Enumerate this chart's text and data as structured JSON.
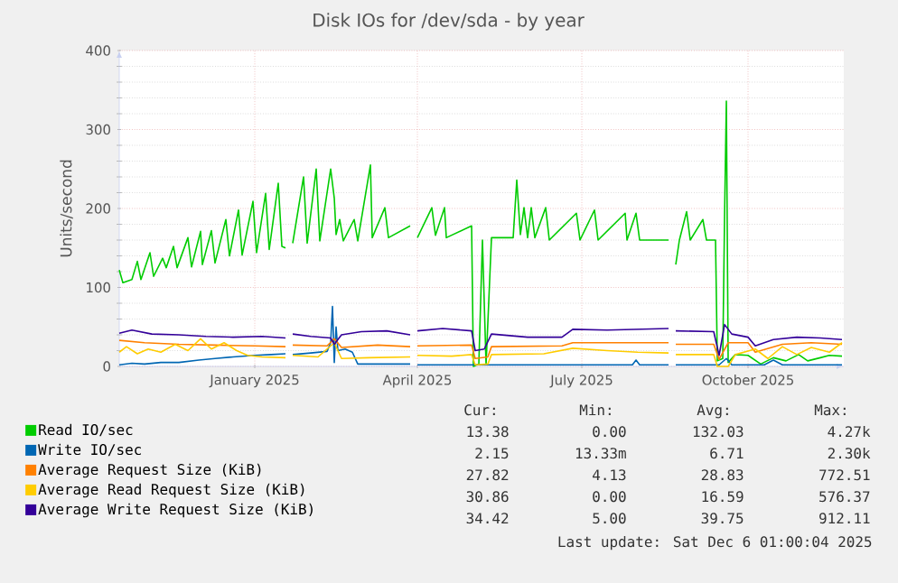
{
  "chart_data": {
    "type": "line",
    "title": "Disk IOs for /dev/sda - by year",
    "ylabel": "Units/second",
    "xlim": [
      "2024-10-18",
      "2025-11-23"
    ],
    "xticks": [
      {
        "value": "2025-01-01",
        "label": "January 2025"
      },
      {
        "value": "2025-04-01",
        "label": "April 2025"
      },
      {
        "value": "2025-07-01",
        "label": "July 2025"
      },
      {
        "value": "2025-10-01",
        "label": "October 2025"
      }
    ],
    "ylim": [
      0,
      400
    ],
    "yticks": [
      0,
      100,
      200,
      300,
      400
    ],
    "grid": true,
    "legend": "bottom",
    "series": [
      {
        "name": "Read IO/sec",
        "color": "#00cc00",
        "x": [
          "2024-10-18",
          "2024-10-20",
          "2024-10-25",
          "2024-10-28",
          "2024-10-30",
          "2024-11-04",
          "2024-11-06",
          "2024-11-11",
          "2024-11-13",
          "2024-11-17",
          "2024-11-19",
          "2024-11-25",
          "2024-11-27",
          "2024-12-02",
          "2024-12-03",
          "2024-12-08",
          "2024-12-10",
          "2024-12-16",
          "2024-12-18",
          "2024-12-23",
          "2024-12-25",
          "2024-12-31",
          "2025-01-02",
          "2025-01-07",
          "2025-01-09",
          "2025-01-14",
          "2025-01-16",
          "2025-01-18",
          "2025-01-20",
          "2025-01-22",
          "2025-01-28",
          "2025-01-30",
          "2025-02-04",
          "2025-02-06",
          "2025-02-12",
          "2025-02-14",
          "2025-02-15",
          "2025-02-17",
          "2025-02-19",
          "2025-02-25",
          "2025-02-27",
          "2025-03-06",
          "2025-03-07",
          "2025-03-14",
          "2025-03-16",
          "2025-03-28",
          "2025-03-30",
          "2025-04-01",
          "2025-04-09",
          "2025-04-11",
          "2025-04-16",
          "2025-04-17",
          "2025-05-01",
          "2025-05-02",
          "2025-05-05",
          "2025-05-07",
          "2025-05-09",
          "2025-05-12",
          "2025-05-24",
          "2025-05-26",
          "2025-05-28",
          "2025-05-30",
          "2025-06-01",
          "2025-06-03",
          "2025-06-05",
          "2025-06-11",
          "2025-06-13",
          "2025-06-28",
          "2025-06-30",
          "2025-07-08",
          "2025-07-10",
          "2025-07-25",
          "2025-07-26",
          "2025-07-31",
          "2025-08-02",
          "2025-08-18",
          "2025-08-20",
          "2025-08-22",
          "2025-08-24",
          "2025-08-28",
          "2025-08-30",
          "2025-09-06",
          "2025-09-08",
          "2025-09-13",
          "2025-09-14",
          "2025-09-17",
          "2025-09-18",
          "2025-09-19",
          "2025-09-20",
          "2025-09-24",
          "2025-10-01",
          "2025-10-08",
          "2025-10-15",
          "2025-10-22",
          "2025-10-29",
          "2025-11-03",
          "2025-11-10",
          "2025-11-15",
          "2025-11-22"
        ],
        "values": [
          122,
          106,
          110,
          133,
          110,
          144,
          114,
          137,
          125,
          152,
          125,
          163,
          126,
          171,
          129,
          172,
          131,
          186,
          140,
          198,
          141,
          209,
          144,
          219,
          148,
          232,
          152,
          150,
          null,
          156,
          240,
          156,
          250,
          159,
          250,
          213,
          167,
          186,
          159,
          186,
          159,
          255,
          163,
          201,
          163,
          178,
          null,
          163,
          201,
          166,
          201,
          163,
          178,
          0,
          3,
          160,
          2,
          163,
          163,
          236,
          167,
          201,
          163,
          201,
          163,
          201,
          160,
          194,
          160,
          198,
          160,
          194,
          160,
          194,
          160,
          160,
          null,
          129,
          160,
          196,
          160,
          186,
          160,
          160,
          7,
          10,
          190,
          336,
          5,
          15,
          14,
          3,
          11,
          7,
          15,
          7,
          11,
          14,
          13
        ]
      },
      {
        "name": "Write IO/sec",
        "color": "#0066b3",
        "x": [
          "2024-10-18",
          "2024-10-25",
          "2024-11-01",
          "2024-11-10",
          "2024-11-20",
          "2024-12-01",
          "2024-12-10",
          "2024-12-20",
          "2025-01-01",
          "2025-01-10",
          "2025-01-18",
          "2025-01-20",
          "2025-01-22",
          "2025-02-01",
          "2025-02-10",
          "2025-02-12",
          "2025-02-13",
          "2025-02-14",
          "2025-02-15",
          "2025-02-16",
          "2025-02-20",
          "2025-02-24",
          "2025-02-27",
          "2025-03-15",
          "2025-03-28",
          "2025-03-30",
          "2025-04-01",
          "2025-05-01",
          "2025-06-01",
          "2025-07-01",
          "2025-07-29",
          "2025-07-31",
          "2025-08-02",
          "2025-08-18",
          "2025-08-20",
          "2025-08-22",
          "2025-09-15",
          "2025-09-19",
          "2025-09-22",
          "2025-10-10",
          "2025-10-15",
          "2025-10-20",
          "2025-11-22"
        ],
        "values": [
          2,
          4,
          3,
          5,
          5,
          8,
          10,
          12,
          14,
          15,
          16,
          null,
          15,
          17,
          19,
          30,
          76,
          5,
          50,
          20,
          22,
          18,
          3,
          3,
          3,
          null,
          2,
          2,
          2,
          2,
          2,
          8,
          2,
          2,
          null,
          2,
          2,
          10,
          2,
          2,
          8,
          2,
          2
        ]
      },
      {
        "name": "Average Request Size (KiB)",
        "color": "#ff8000",
        "x": [
          "2024-10-18",
          "2024-11-01",
          "2024-11-20",
          "2024-12-10",
          "2025-01-01",
          "2025-01-18",
          "2025-01-20",
          "2025-01-22",
          "2025-02-10",
          "2025-02-14",
          "2025-02-18",
          "2025-03-10",
          "2025-03-28",
          "2025-03-30",
          "2025-04-01",
          "2025-05-01",
          "2025-05-03",
          "2025-05-10",
          "2025-05-12",
          "2025-06-20",
          "2025-06-26",
          "2025-08-18",
          "2025-08-20",
          "2025-08-22",
          "2025-09-12",
          "2025-09-15",
          "2025-09-20",
          "2025-10-01",
          "2025-10-05",
          "2025-10-20",
          "2025-11-05",
          "2025-11-22"
        ],
        "values": [
          33,
          30,
          28,
          27,
          26,
          25,
          null,
          27,
          26,
          35,
          24,
          27,
          25,
          null,
          26,
          27,
          10,
          12,
          25,
          26,
          30,
          30,
          null,
          28,
          28,
          9,
          30,
          30,
          18,
          28,
          30,
          28
        ]
      },
      {
        "name": "Average Read Request Size (KiB)",
        "color": "#ffcc00",
        "x": [
          "2024-10-18",
          "2024-10-22",
          "2024-10-28",
          "2024-11-03",
          "2024-11-10",
          "2024-11-18",
          "2024-11-25",
          "2024-12-02",
          "2024-12-08",
          "2024-12-15",
          "2024-12-22",
          "2024-12-28",
          "2025-01-05",
          "2025-01-18",
          "2025-01-20",
          "2025-01-22",
          "2025-02-05",
          "2025-02-14",
          "2025-02-18",
          "2025-03-05",
          "2025-03-28",
          "2025-03-30",
          "2025-04-01",
          "2025-04-20",
          "2025-05-01",
          "2025-05-03",
          "2025-05-10",
          "2025-05-12",
          "2025-06-10",
          "2025-06-26",
          "2025-07-15",
          "2025-08-01",
          "2025-08-18",
          "2025-08-20",
          "2025-08-22",
          "2025-09-12",
          "2025-09-14",
          "2025-09-20",
          "2025-09-24",
          "2025-10-05",
          "2025-10-12",
          "2025-10-20",
          "2025-10-28",
          "2025-11-05",
          "2025-11-15",
          "2025-11-22"
        ],
        "values": [
          18,
          25,
          16,
          22,
          18,
          28,
          20,
          35,
          22,
          30,
          20,
          14,
          12,
          11,
          null,
          14,
          12,
          30,
          10,
          11,
          12,
          null,
          14,
          13,
          15,
          2,
          3,
          15,
          16,
          23,
          20,
          18,
          17,
          null,
          15,
          15,
          0,
          0,
          15,
          22,
          10,
          25,
          15,
          24,
          18,
          30
        ]
      },
      {
        "name": "Average Write Request Size (KiB)",
        "color": "#330099",
        "x": [
          "2024-10-18",
          "2024-10-25",
          "2024-11-05",
          "2024-11-20",
          "2024-12-05",
          "2024-12-20",
          "2025-01-05",
          "2025-01-18",
          "2025-01-20",
          "2025-01-22",
          "2025-02-01",
          "2025-02-12",
          "2025-02-14",
          "2025-02-18",
          "2025-03-01",
          "2025-03-15",
          "2025-03-28",
          "2025-03-30",
          "2025-04-01",
          "2025-04-15",
          "2025-05-01",
          "2025-05-03",
          "2025-05-08",
          "2025-05-12",
          "2025-06-01",
          "2025-06-20",
          "2025-06-26",
          "2025-07-15",
          "2025-08-01",
          "2025-08-18",
          "2025-08-20",
          "2025-08-22",
          "2025-09-12",
          "2025-09-15",
          "2025-09-18",
          "2025-09-22",
          "2025-10-01",
          "2025-10-05",
          "2025-10-15",
          "2025-10-28",
          "2025-11-10",
          "2025-11-22"
        ],
        "values": [
          42,
          46,
          41,
          40,
          38,
          37,
          38,
          36,
          null,
          41,
          38,
          36,
          28,
          40,
          44,
          45,
          40,
          null,
          45,
          48,
          45,
          20,
          22,
          41,
          37,
          37,
          47,
          46,
          47,
          48,
          null,
          45,
          44,
          14,
          53,
          41,
          37,
          26,
          34,
          37,
          36,
          34
        ]
      }
    ],
    "annotations": [
      "Cur:",
      "Min:",
      "Avg:",
      "Max:",
      "13.38",
      "0.00",
      "132.03",
      "4.27k",
      "2.15",
      "13.33m",
      "6.71",
      "2.30k",
      "27.82",
      "4.13",
      "28.83",
      "772.51",
      "30.86",
      "0.00",
      "16.59",
      "576.37",
      "34.42",
      "5.00",
      "39.75",
      "912.11",
      "Last update: Sat Dec 6 01:00:04 2025"
    ]
  }
}
